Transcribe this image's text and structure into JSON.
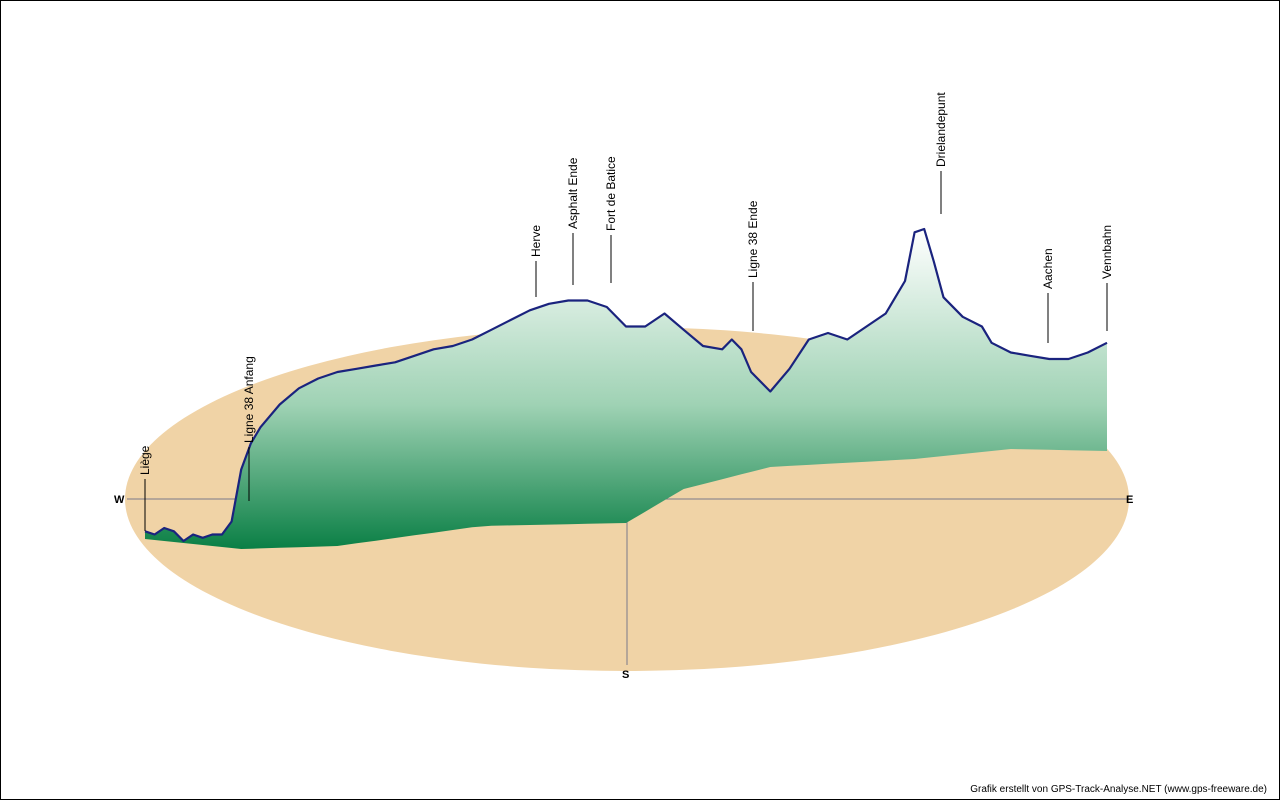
{
  "chart_data": {
    "type": "area",
    "title": "",
    "xlabel": "",
    "ylabel": "",
    "compass": {
      "west": "W",
      "east": "E",
      "south": "S"
    },
    "waypoints": [
      {
        "name": "Liège",
        "index": 0
      },
      {
        "name": "Ligne 38 Anfang",
        "index": 1
      },
      {
        "name": "Herve",
        "index": 2
      },
      {
        "name": "Asphalt Ende",
        "index": 3
      },
      {
        "name": "Fort de Batice",
        "index": 4
      },
      {
        "name": "Ligne 38 Ende",
        "index": 5
      },
      {
        "name": "Drielandepunt",
        "index": 6
      },
      {
        "name": "Aachen",
        "index": 7
      },
      {
        "name": "Vennbahn",
        "index": 8
      }
    ],
    "series": [
      {
        "elevation_profile": [
          [
            0.0,
            0.03
          ],
          [
            0.01,
            0.02
          ],
          [
            0.02,
            0.04
          ],
          [
            0.03,
            0.03
          ],
          [
            0.04,
            0.0
          ],
          [
            0.05,
            0.02
          ],
          [
            0.06,
            0.01
          ],
          [
            0.07,
            0.02
          ],
          [
            0.08,
            0.02
          ],
          [
            0.09,
            0.06
          ],
          [
            0.1,
            0.22
          ],
          [
            0.11,
            0.3
          ],
          [
            0.12,
            0.35
          ],
          [
            0.14,
            0.42
          ],
          [
            0.16,
            0.47
          ],
          [
            0.18,
            0.5
          ],
          [
            0.2,
            0.52
          ],
          [
            0.22,
            0.53
          ],
          [
            0.24,
            0.54
          ],
          [
            0.26,
            0.55
          ],
          [
            0.28,
            0.57
          ],
          [
            0.3,
            0.59
          ],
          [
            0.32,
            0.6
          ],
          [
            0.34,
            0.62
          ],
          [
            0.36,
            0.65
          ],
          [
            0.38,
            0.68
          ],
          [
            0.4,
            0.71
          ],
          [
            0.42,
            0.73
          ],
          [
            0.44,
            0.74
          ],
          [
            0.46,
            0.74
          ],
          [
            0.48,
            0.72
          ],
          [
            0.5,
            0.66
          ],
          [
            0.52,
            0.66
          ],
          [
            0.54,
            0.7
          ],
          [
            0.56,
            0.65
          ],
          [
            0.58,
            0.6
          ],
          [
            0.6,
            0.59
          ],
          [
            0.61,
            0.62
          ],
          [
            0.62,
            0.59
          ],
          [
            0.63,
            0.52
          ],
          [
            0.65,
            0.46
          ],
          [
            0.67,
            0.53
          ],
          [
            0.69,
            0.62
          ],
          [
            0.71,
            0.64
          ],
          [
            0.73,
            0.62
          ],
          [
            0.75,
            0.66
          ],
          [
            0.77,
            0.7
          ],
          [
            0.79,
            0.8
          ],
          [
            0.8,
            0.95
          ],
          [
            0.81,
            0.96
          ],
          [
            0.82,
            0.86
          ],
          [
            0.83,
            0.75
          ],
          [
            0.85,
            0.69
          ],
          [
            0.87,
            0.66
          ],
          [
            0.88,
            0.61
          ],
          [
            0.9,
            0.58
          ],
          [
            0.92,
            0.57
          ],
          [
            0.94,
            0.56
          ],
          [
            0.96,
            0.56
          ],
          [
            0.98,
            0.58
          ],
          [
            1.0,
            0.61
          ]
        ]
      }
    ]
  },
  "footer": {
    "credit": "Grafik erstellt von GPS-Track-Analyse.NET (www.gps-freeware.de)"
  },
  "colors": {
    "ground": "#f0d3a6",
    "profile_top": "#ffffff",
    "profile_bottom": "#0a7f45",
    "profile_line": "#1a237e",
    "axis": "#7a7a8a"
  }
}
